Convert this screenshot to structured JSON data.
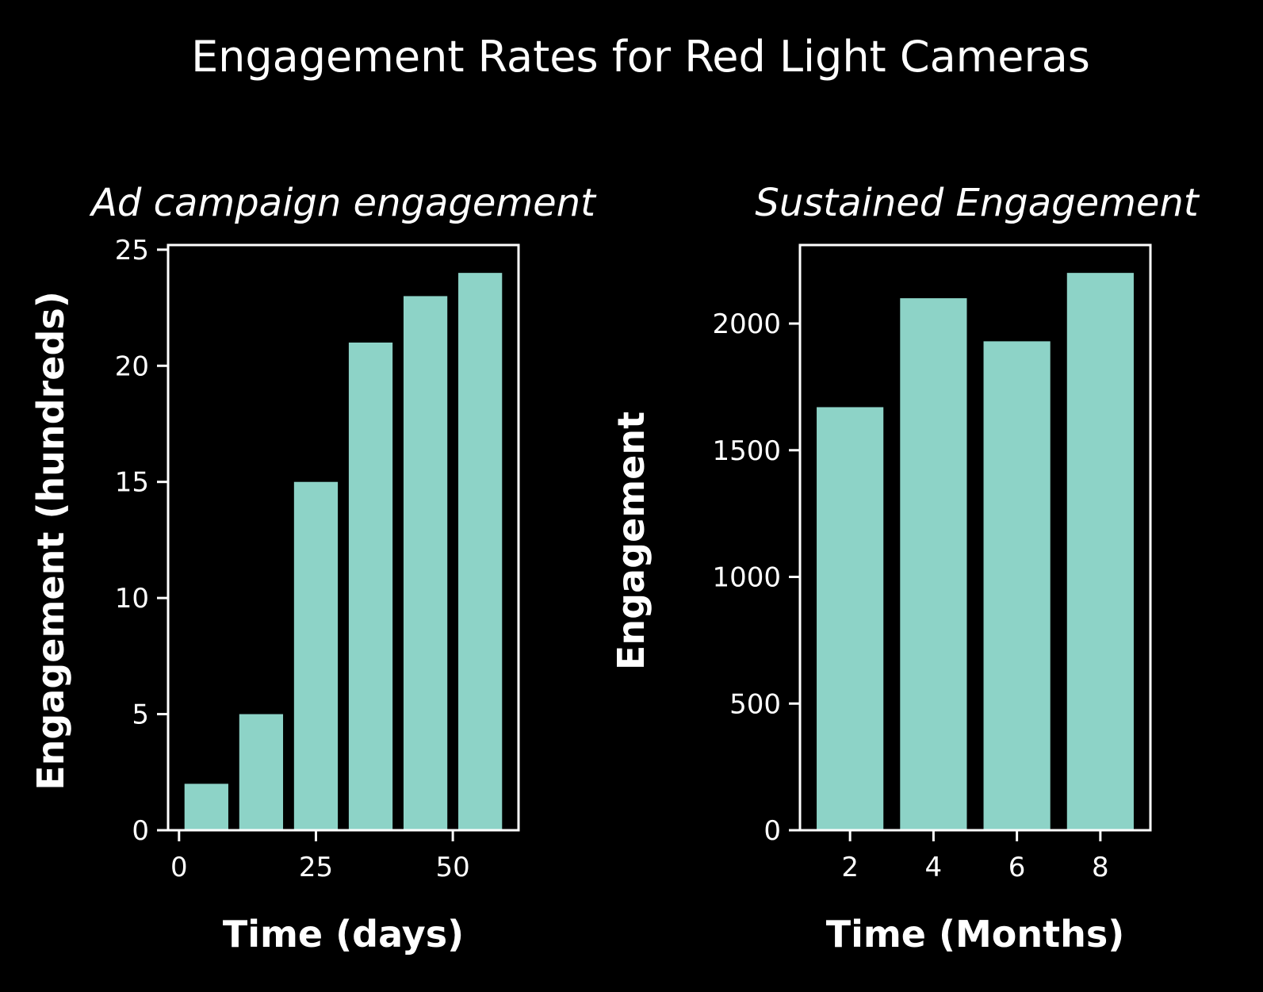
{
  "title": "Engagement Rates for Red Light Cameras",
  "colors": {
    "bar": "#8dd3c7",
    "axes": "#ffffff",
    "background": "#000000"
  },
  "chart_data": [
    {
      "type": "bar",
      "title": "Ad campaign engagement",
      "xlabel": "Time (days)",
      "ylabel": "Engagement (hundreds)",
      "x": [
        5,
        15,
        25,
        35,
        45,
        55
      ],
      "values": [
        2,
        5,
        15,
        21,
        23,
        24
      ],
      "bar_width": 8,
      "xlim": [
        -2,
        62
      ],
      "ylim": [
        0,
        25.2
      ],
      "xticks": [
        0,
        25,
        50
      ],
      "yticks": [
        0,
        5,
        10,
        15,
        20,
        25
      ],
      "grid": false
    },
    {
      "type": "bar",
      "title": "Sustained Engagement",
      "xlabel": "Time (Months)",
      "ylabel": "Engagement",
      "x": [
        2,
        4,
        6,
        8
      ],
      "values": [
        1670,
        2100,
        1930,
        2200
      ],
      "bar_width": 1.6,
      "xlim": [
        0.8,
        9.2
      ],
      "ylim": [
        0,
        2310
      ],
      "xticks": [
        2,
        4,
        6,
        8
      ],
      "yticks": [
        0,
        500,
        1000,
        1500,
        2000
      ],
      "grid": false
    }
  ]
}
